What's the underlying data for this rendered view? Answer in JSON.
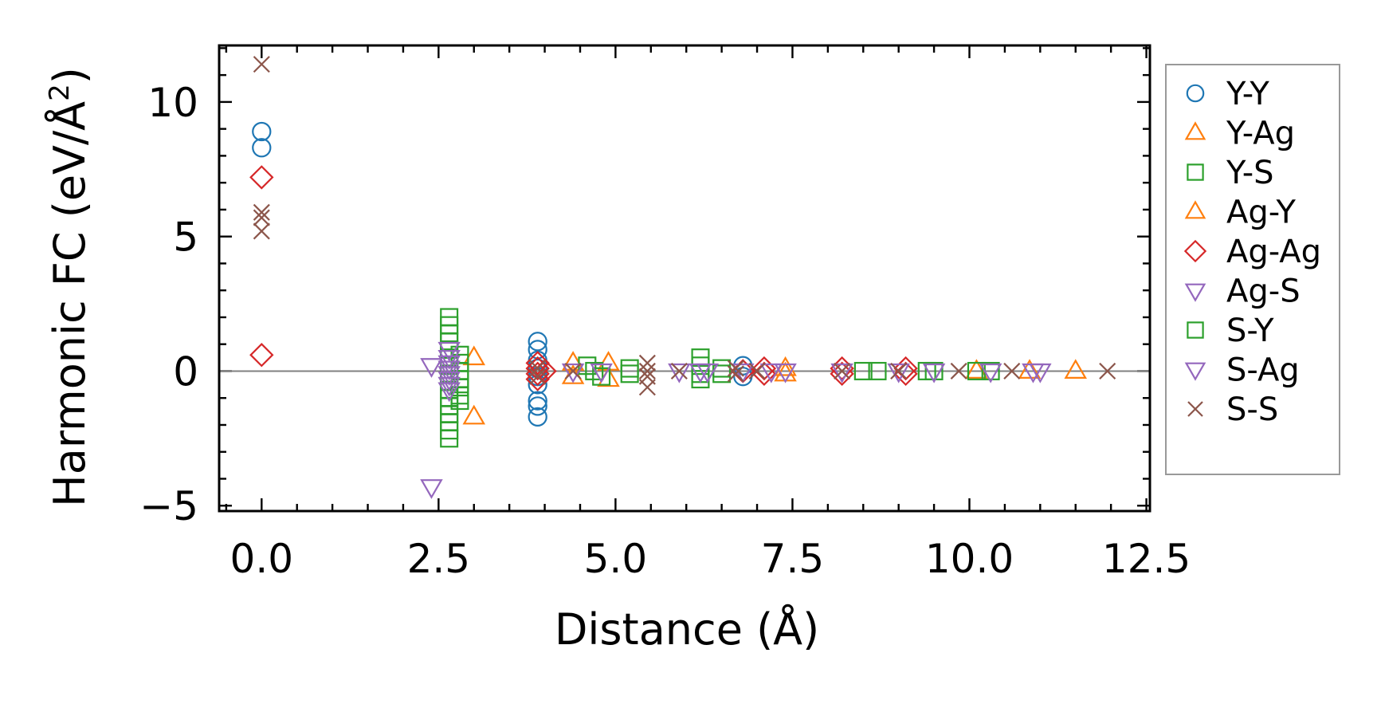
{
  "chart_data": {
    "type": "scatter",
    "title": "",
    "xlabel": "Distance (Å)",
    "ylabel_main": "Harmonic FC (eV/Å",
    "ylabel_sup": "2",
    "ylabel_close": ")",
    "xlim": [
      -0.6,
      12.55
    ],
    "ylim": [
      -5.2,
      12.1
    ],
    "xticks": [
      0.0,
      2.5,
      5.0,
      7.5,
      10.0,
      12.5
    ],
    "xtick_labels": [
      "0.0",
      "2.5",
      "5.0",
      "7.5",
      "10.0",
      "12.5"
    ],
    "yticks": [
      -5,
      0,
      5,
      10
    ],
    "ytick_labels": [
      "−5",
      "0",
      "5",
      "10"
    ],
    "hline": 0,
    "legend_position": "outside-right",
    "series": [
      {
        "name": "Y-Y",
        "marker": "circle",
        "color": "#1f77b4",
        "points": [
          [
            0,
            8.9
          ],
          [
            0,
            8.3
          ],
          [
            3.9,
            1.1
          ],
          [
            3.9,
            0.8
          ],
          [
            3.9,
            0.4
          ],
          [
            3.9,
            0.1
          ],
          [
            3.9,
            -0.2
          ],
          [
            3.9,
            -0.5
          ],
          [
            3.9,
            -1.1
          ],
          [
            3.9,
            -1.3
          ],
          [
            3.9,
            -1.7
          ],
          [
            6.8,
            0.2
          ],
          [
            6.8,
            -0.2
          ]
        ]
      },
      {
        "name": "Y-Ag",
        "marker": "triangle-up",
        "color": "#ff7f0e",
        "points": [
          [
            3.0,
            0.5
          ],
          [
            3.0,
            -1.7
          ],
          [
            4.4,
            0.3
          ],
          [
            4.4,
            -0.2
          ],
          [
            4.9,
            0.3
          ],
          [
            4.9,
            -0.3
          ],
          [
            7.4,
            0.1
          ],
          [
            7.4,
            -0.1
          ],
          [
            10.1,
            0
          ],
          [
            10.85,
            0
          ],
          [
            11.5,
            0
          ]
        ]
      },
      {
        "name": "Y-S",
        "marker": "square",
        "color": "#2ca02c",
        "points": [
          [
            2.65,
            2.0
          ],
          [
            2.65,
            1.7
          ],
          [
            2.65,
            1.4
          ],
          [
            2.65,
            1.1
          ],
          [
            2.65,
            0.8
          ],
          [
            2.65,
            0.5
          ],
          [
            2.65,
            0.2
          ],
          [
            2.65,
            -0.1
          ],
          [
            2.65,
            -0.4
          ],
          [
            2.65,
            -0.7
          ],
          [
            2.65,
            -1.0
          ],
          [
            2.65,
            -1.3
          ],
          [
            2.65,
            -1.6
          ],
          [
            2.65,
            -1.9
          ],
          [
            2.65,
            -2.2
          ],
          [
            2.65,
            -2.5
          ],
          [
            2.8,
            0.6
          ],
          [
            2.8,
            0.3
          ],
          [
            2.8,
            0
          ],
          [
            2.8,
            -0.3
          ],
          [
            2.8,
            -0.6
          ],
          [
            2.8,
            -0.9
          ],
          [
            2.8,
            -1.1
          ],
          [
            4.6,
            0.2
          ],
          [
            4.7,
            0
          ],
          [
            4.8,
            -0.2
          ],
          [
            5.2,
            0.1
          ],
          [
            5.2,
            -0.1
          ],
          [
            6.2,
            0.5
          ],
          [
            6.2,
            0.2
          ],
          [
            6.2,
            -0.1
          ],
          [
            6.2,
            -0.3
          ],
          [
            6.5,
            0.1
          ],
          [
            6.5,
            -0.1
          ],
          [
            8.5,
            0
          ],
          [
            8.7,
            0
          ],
          [
            9.4,
            0
          ],
          [
            9.5,
            0
          ],
          [
            10.1,
            0
          ],
          [
            10.3,
            0
          ]
        ]
      },
      {
        "name": "Ag-Y",
        "marker": "triangle-up",
        "color": "#ff7f0e",
        "points": []
      },
      {
        "name": "Ag-Ag",
        "marker": "diamond",
        "color": "#d62728",
        "points": [
          [
            0,
            7.2
          ],
          [
            0,
            0.6
          ],
          [
            3.9,
            0.3
          ],
          [
            3.9,
            0.1
          ],
          [
            3.9,
            -0.1
          ],
          [
            3.9,
            -0.3
          ],
          [
            4.0,
            0
          ],
          [
            6.8,
            0
          ],
          [
            7.1,
            0.1
          ],
          [
            7.1,
            -0.1
          ],
          [
            8.2,
            0.1
          ],
          [
            8.2,
            -0.1
          ],
          [
            9.1,
            0.1
          ],
          [
            9.1,
            -0.1
          ]
        ]
      },
      {
        "name": "Ag-S",
        "marker": "triangle-down",
        "color": "#9467bd",
        "points": [
          [
            2.4,
            0.2
          ],
          [
            2.4,
            -4.3
          ],
          [
            2.65,
            0.8
          ],
          [
            2.65,
            0.5
          ],
          [
            2.65,
            0.3
          ],
          [
            2.65,
            0.1
          ],
          [
            2.65,
            -0.1
          ],
          [
            2.65,
            -0.3
          ],
          [
            2.65,
            -0.5
          ],
          [
            2.65,
            -0.7
          ],
          [
            4.4,
            0
          ],
          [
            4.8,
            0
          ],
          [
            5.9,
            0
          ],
          [
            6.2,
            0
          ],
          [
            6.3,
            0
          ],
          [
            7.4,
            0
          ],
          [
            8.2,
            0
          ],
          [
            9.0,
            0
          ],
          [
            10.3,
            0
          ],
          [
            10.9,
            0
          ],
          [
            11.0,
            0
          ]
        ]
      },
      {
        "name": "S-Y",
        "marker": "square",
        "color": "#2ca02c",
        "points": []
      },
      {
        "name": "S-Ag",
        "marker": "triangle-down",
        "color": "#9467bd",
        "points": [
          [
            6.8,
            0
          ],
          [
            7.2,
            0
          ],
          [
            9.5,
            0
          ]
        ]
      },
      {
        "name": "S-S",
        "marker": "x",
        "color": "#8c564b",
        "points": [
          [
            0,
            11.4
          ],
          [
            0,
            5.9
          ],
          [
            0,
            5.7
          ],
          [
            0,
            5.2
          ],
          [
            3.9,
            0.1
          ],
          [
            3.9,
            -0.2
          ],
          [
            4.4,
            0
          ],
          [
            5.45,
            0.3
          ],
          [
            5.45,
            0
          ],
          [
            5.45,
            -0.2
          ],
          [
            5.45,
            -0.6
          ],
          [
            5.9,
            0
          ],
          [
            6.7,
            0.1
          ],
          [
            6.7,
            -0.1
          ],
          [
            7.0,
            0
          ],
          [
            8.2,
            0
          ],
          [
            9.0,
            0
          ],
          [
            9.85,
            0
          ],
          [
            10.6,
            0
          ],
          [
            11.95,
            0
          ]
        ]
      }
    ]
  }
}
